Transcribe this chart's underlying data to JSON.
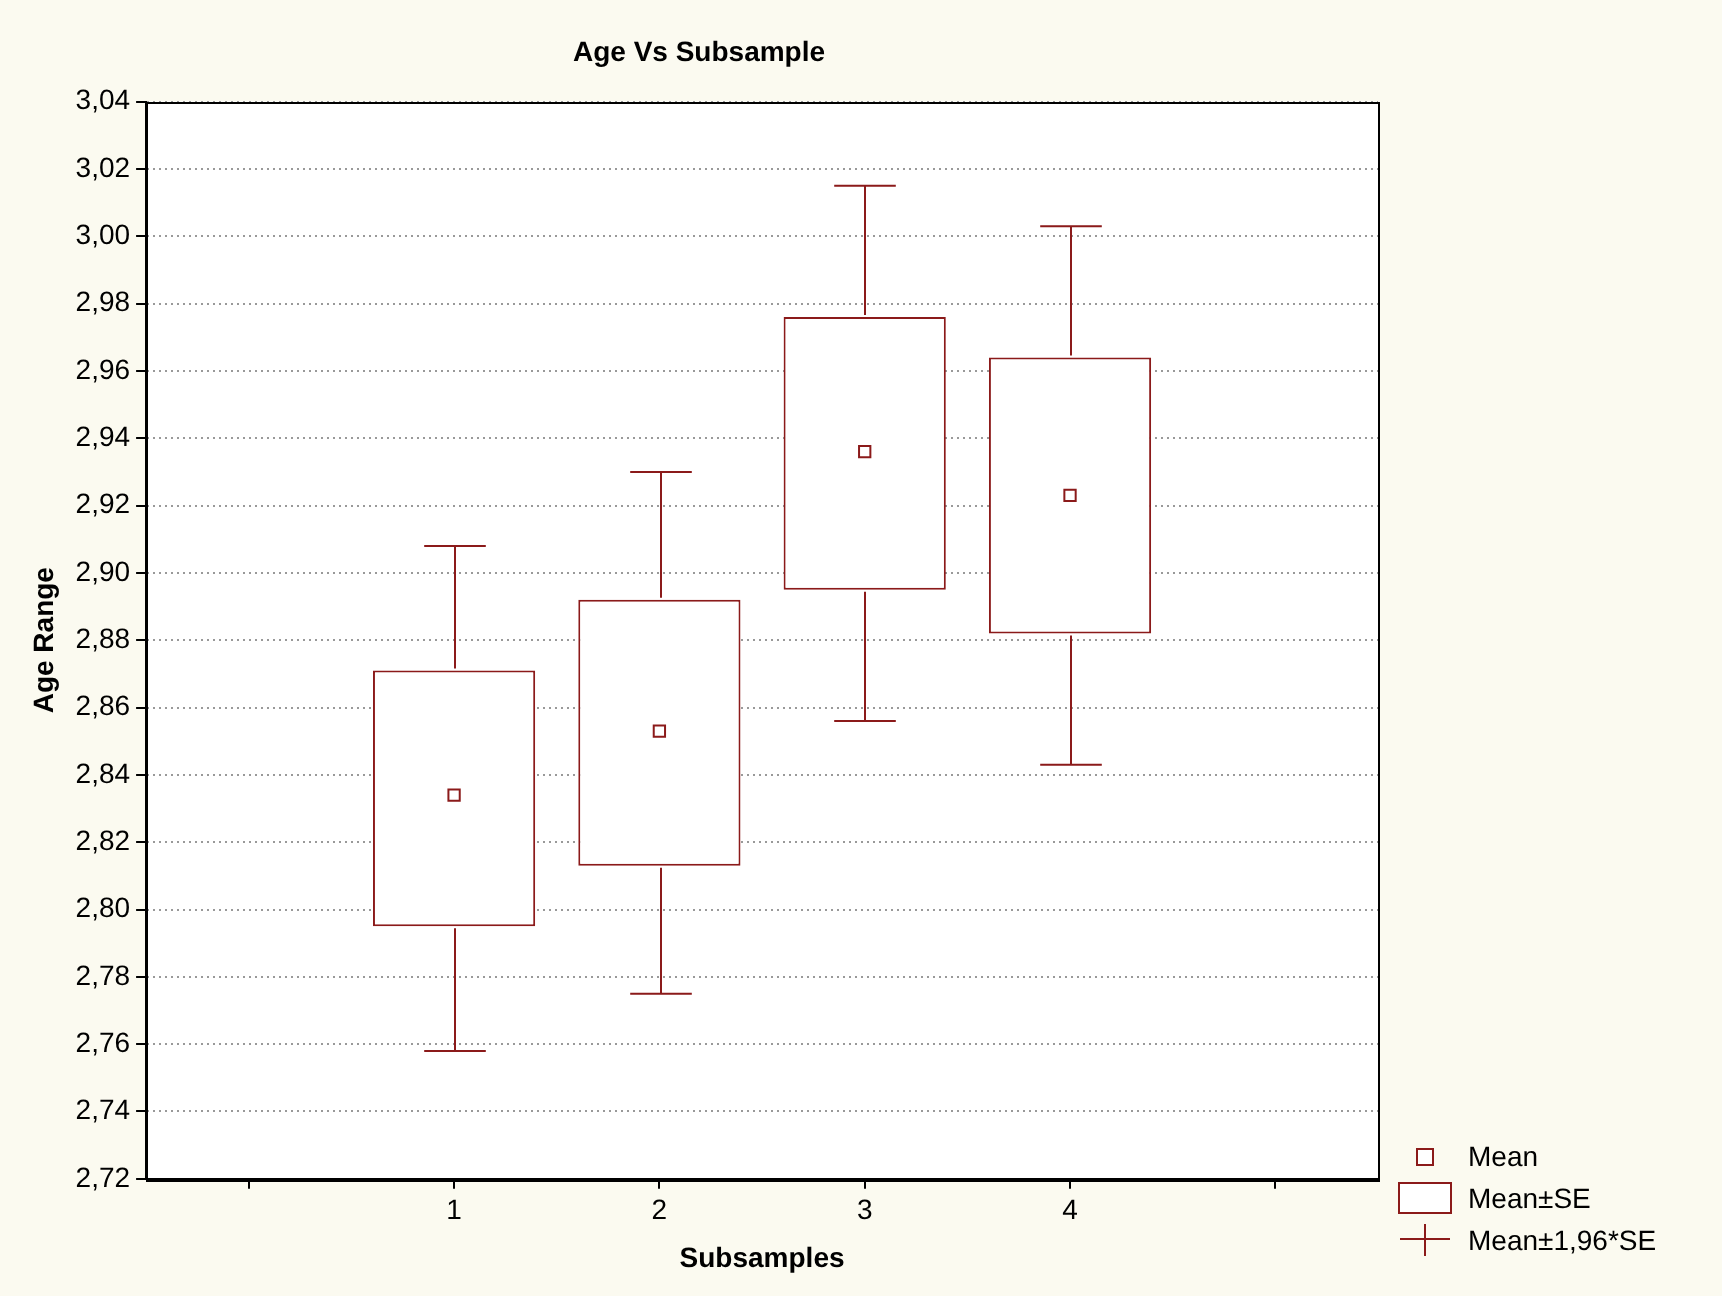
{
  "chart_data": {
    "type": "box",
    "title": "Age Vs Subsample",
    "xlabel": "Subsamples",
    "ylabel": "Age Range",
    "categories": [
      null,
      "1",
      "2",
      "3",
      "4",
      null
    ],
    "series": [
      {
        "color": "#8b1a1a",
        "boxes": [
          null,
          {
            "low": 2.758,
            "q1": 2.795,
            "q3": 2.871,
            "high": 2.908,
            "mean": 2.834
          },
          {
            "low": 2.775,
            "q1": 2.813,
            "q3": 2.892,
            "high": 2.93,
            "mean": 2.853
          },
          {
            "low": 2.856,
            "q1": 2.895,
            "q3": 2.976,
            "high": 3.015,
            "mean": 2.936
          },
          {
            "low": 2.843,
            "q1": 2.882,
            "q3": 2.964,
            "high": 3.003,
            "mean": 2.923
          },
          null
        ]
      }
    ],
    "annotations": [
      "Mean",
      "Mean±SE",
      "Mean±1,96*SE"
    ],
    "marker": "square",
    "ylim": [
      2.72,
      3.04
    ],
    "yticks": [
      {
        "value": 2.72,
        "label": "2,72"
      },
      {
        "value": 2.74,
        "label": "2,74"
      },
      {
        "value": 2.76,
        "label": "2,76"
      },
      {
        "value": 2.78,
        "label": "2,78"
      },
      {
        "value": 2.8,
        "label": "2,80"
      },
      {
        "value": 2.82,
        "label": "2,82"
      },
      {
        "value": 2.84,
        "label": "2,84"
      },
      {
        "value": 2.86,
        "label": "2,86"
      },
      {
        "value": 2.88,
        "label": "2,88"
      },
      {
        "value": 2.9,
        "label": "2,90"
      },
      {
        "value": 2.92,
        "label": "2,92"
      },
      {
        "value": 2.94,
        "label": "2,94"
      },
      {
        "value": 2.96,
        "label": "2,96"
      },
      {
        "value": 2.98,
        "label": "2,98"
      },
      {
        "value": 3.0,
        "label": "3,00"
      },
      {
        "value": 3.02,
        "label": "3,02"
      },
      {
        "value": 3.04,
        "label": "3,04"
      }
    ],
    "grid": "y"
  }
}
